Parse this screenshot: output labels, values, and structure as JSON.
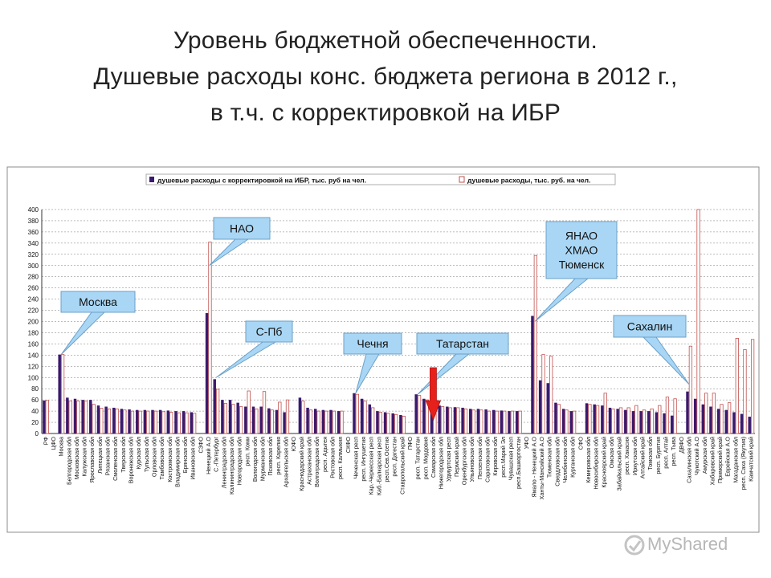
{
  "title_lines": [
    "Уровень бюджетной обеспеченности.",
    "Душевые расходы конс. бюджета региона в 2012 г.,",
    "в т.ч. с корректировкой на ИБР"
  ],
  "watermark": {
    "text": "MyShared"
  },
  "colors": {
    "series1": "#3a1a6e",
    "series2": "#c0504d",
    "callout": "#a9d6f5",
    "callout_border": "#6aa0c8",
    "arrow": "#e8201c"
  },
  "chart_data": {
    "type": "bar",
    "ylim": [
      0,
      400
    ],
    "yticks": [
      0,
      20,
      40,
      60,
      80,
      100,
      120,
      140,
      160,
      180,
      200,
      220,
      240,
      260,
      280,
      300,
      320,
      340,
      360,
      380,
      400
    ],
    "grid": true,
    "legend_position": "top",
    "series": [
      {
        "name": "душевые расходы с корректировкой на ИБР, тыс. руб на чел."
      },
      {
        "name": "душевые расходы, тыс. руб. на чел."
      }
    ],
    "points": [
      {
        "c": "РФ",
        "v1": 59,
        "v2": 59
      },
      {
        "c": "ЦФО",
        "v1": 0,
        "v2": 0
      },
      {
        "c": "Москва",
        "v1": 141,
        "v2": 141
      },
      {
        "c": "Белгородская обл",
        "v1": 64,
        "v2": 58
      },
      {
        "c": "Московская обл",
        "v1": 62,
        "v2": 58
      },
      {
        "c": "Калужская обл",
        "v1": 60,
        "v2": 58
      },
      {
        "c": "Ярославская обл",
        "v1": 60,
        "v2": 52
      },
      {
        "c": "Липецкая обл",
        "v1": 50,
        "v2": 45
      },
      {
        "c": "Рязанская обл",
        "v1": 48,
        "v2": 44
      },
      {
        "c": "Смоленская обл",
        "v1": 46,
        "v2": 44
      },
      {
        "c": "Тверская обл",
        "v1": 44,
        "v2": 42
      },
      {
        "c": "Воронежская обл",
        "v1": 43,
        "v2": 40
      },
      {
        "c": "Курская обл",
        "v1": 42,
        "v2": 40
      },
      {
        "c": "Тульская обл",
        "v1": 42,
        "v2": 40
      },
      {
        "c": "Орловская обл",
        "v1": 42,
        "v2": 40
      },
      {
        "c": "Тамбовская обл",
        "v1": 42,
        "v2": 39
      },
      {
        "c": "Костромская обл",
        "v1": 41,
        "v2": 38
      },
      {
        "c": "Владимирская обл",
        "v1": 40,
        "v2": 37
      },
      {
        "c": "Брянская обл",
        "v1": 40,
        "v2": 37
      },
      {
        "c": "Ивановская обл",
        "v1": 38,
        "v2": 36
      },
      {
        "c": "СЗФО",
        "v1": 0,
        "v2": 0
      },
      {
        "c": "Ненецкий А.О",
        "v1": 215,
        "v2": 342
      },
      {
        "c": "С.-Петербург",
        "v1": 97,
        "v2": 79
      },
      {
        "c": "Ленинградская обл",
        "v1": 60,
        "v2": 54
      },
      {
        "c": "Калининградская обл",
        "v1": 60,
        "v2": 52
      },
      {
        "c": "Новгородская обл",
        "v1": 55,
        "v2": 48
      },
      {
        "c": "респ. Коми",
        "v1": 48,
        "v2": 76
      },
      {
        "c": "Вологодская обл",
        "v1": 48,
        "v2": 44
      },
      {
        "c": "Мурманская обл",
        "v1": 48,
        "v2": 75
      },
      {
        "c": "Псковская обл",
        "v1": 45,
        "v2": 42
      },
      {
        "c": "респ. Карелия",
        "v1": 42,
        "v2": 56
      },
      {
        "c": "Архангельская обл",
        "v1": 38,
        "v2": 60
      },
      {
        "c": "ЮФО",
        "v1": 0,
        "v2": 0
      },
      {
        "c": "Краснодарский край",
        "v1": 64,
        "v2": 58
      },
      {
        "c": "Астраханская обл",
        "v1": 46,
        "v2": 42
      },
      {
        "c": "Волгоградская обл",
        "v1": 44,
        "v2": 40
      },
      {
        "c": "респ. Адыгея",
        "v1": 42,
        "v2": 40
      },
      {
        "c": "Ростовская обл",
        "v1": 42,
        "v2": 40
      },
      {
        "c": "респ. Калмыкия",
        "v1": 40,
        "v2": 40
      },
      {
        "c": "СКФО",
        "v1": 0,
        "v2": 0
      },
      {
        "c": "Чеченская респ",
        "v1": 72,
        "v2": 70
      },
      {
        "c": "респ. Ингушетия",
        "v1": 62,
        "v2": 58
      },
      {
        "c": "Кар.-Черкесская респ",
        "v1": 52,
        "v2": 46
      },
      {
        "c": "Каб.-Балкарская респ",
        "v1": 40,
        "v2": 38
      },
      {
        "c": "респ.Сев.Осетия",
        "v1": 38,
        "v2": 36
      },
      {
        "c": "респ. Дагестан",
        "v1": 36,
        "v2": 34
      },
      {
        "c": "Ставропольский край",
        "v1": 33,
        "v2": 31
      },
      {
        "c": "ПФО",
        "v1": 0,
        "v2": 0
      },
      {
        "c": "респ. Татарстан",
        "v1": 70,
        "v2": 68
      },
      {
        "c": "респ. Мордовия",
        "v1": 62,
        "v2": 60
      },
      {
        "c": "Самарская обл",
        "v1": 57,
        "v2": 55
      },
      {
        "c": "Нижегородская обл",
        "v1": 50,
        "v2": 48
      },
      {
        "c": "Удмуртская респ",
        "v1": 48,
        "v2": 46
      },
      {
        "c": "Пермский край",
        "v1": 47,
        "v2": 46
      },
      {
        "c": "Оренбургская обл",
        "v1": 46,
        "v2": 44
      },
      {
        "c": "Ульяновская обл",
        "v1": 44,
        "v2": 42
      },
      {
        "c": "Пензенская обл",
        "v1": 44,
        "v2": 42
      },
      {
        "c": "Саратовская обл",
        "v1": 43,
        "v2": 40
      },
      {
        "c": "Кировская обл",
        "v1": 42,
        "v2": 40
      },
      {
        "c": "респ.Марий Эл",
        "v1": 41,
        "v2": 40
      },
      {
        "c": "Чувашская респ",
        "v1": 40,
        "v2": 40
      },
      {
        "c": "респ.Башкортостан",
        "v1": 40,
        "v2": 40
      },
      {
        "c": "УФО",
        "v1": 0,
        "v2": 0
      },
      {
        "c": "Ямало - Ненецкий А.О",
        "v1": 210,
        "v2": 318
      },
      {
        "c": "Ханты-Мансийский А.О",
        "v1": 95,
        "v2": 141
      },
      {
        "c": "Тюменская обл",
        "v1": 90,
        "v2": 138
      },
      {
        "c": "Свердловская обл",
        "v1": 55,
        "v2": 52
      },
      {
        "c": "Челябинская обл",
        "v1": 44,
        "v2": 42
      },
      {
        "c": "Курганская обл",
        "v1": 40,
        "v2": 40
      },
      {
        "c": "СФО",
        "v1": 0,
        "v2": 0
      },
      {
        "c": "Кемеровская обл",
        "v1": 54,
        "v2": 52
      },
      {
        "c": "Новосибирская обл",
        "v1": 52,
        "v2": 50
      },
      {
        "c": "Красноярский край",
        "v1": 50,
        "v2": 72
      },
      {
        "c": "Омская обл",
        "v1": 46,
        "v2": 44
      },
      {
        "c": "Забайкальский край",
        "v1": 44,
        "v2": 46
      },
      {
        "c": "респ. Хакасия",
        "v1": 42,
        "v2": 46
      },
      {
        "c": "Иркутская обл",
        "v1": 40,
        "v2": 50
      },
      {
        "c": "Алтайский край",
        "v1": 40,
        "v2": 42
      },
      {
        "c": "Томская обл",
        "v1": 40,
        "v2": 44
      },
      {
        "c": "респ. Бурятия",
        "v1": 38,
        "v2": 50
      },
      {
        "c": "респ. Алтай",
        "v1": 36,
        "v2": 65
      },
      {
        "c": "респ. Тыва",
        "v1": 32,
        "v2": 62
      },
      {
        "c": "ДВФО",
        "v1": 0,
        "v2": 0
      },
      {
        "c": "Сахалинская обл",
        "v1": 75,
        "v2": 156
      },
      {
        "c": "Чукотский А.О",
        "v1": 62,
        "v2": 402
      },
      {
        "c": "Амурская обл",
        "v1": 52,
        "v2": 72
      },
      {
        "c": "Хабаровский край",
        "v1": 48,
        "v2": 72
      },
      {
        "c": "Приморский край",
        "v1": 44,
        "v2": 52
      },
      {
        "c": "Еврейская А.О",
        "v1": 42,
        "v2": 55
      },
      {
        "c": "Магаданская обл",
        "v1": 38,
        "v2": 170
      },
      {
        "c": "респ. Саха (Якутия)",
        "v1": 35,
        "v2": 150
      },
      {
        "c": "Камчатский край",
        "v1": 30,
        "v2": 168
      }
    ],
    "callouts": [
      {
        "label": "Москва",
        "target": "Москва"
      },
      {
        "label": "НАО",
        "target": "Ненецкий А.О"
      },
      {
        "label": "С-Пб",
        "target": "С.-Петербург"
      },
      {
        "label": "Чечня",
        "target": "Чеченская респ"
      },
      {
        "label": "Татарстан",
        "target": "респ. Татарстан"
      },
      {
        "label": "ЯНАО\nХМАО\nТюменск",
        "target": "Ямало - Ненецкий А.О"
      },
      {
        "label": "Сахалин",
        "target": "Сахалинская обл"
      }
    ]
  }
}
